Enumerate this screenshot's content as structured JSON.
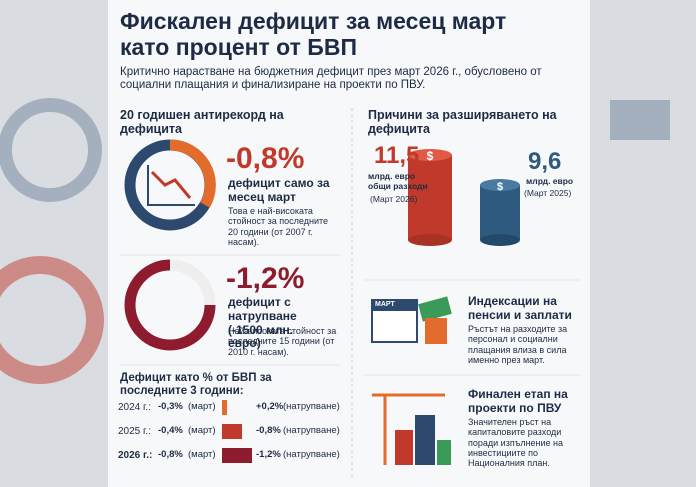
{
  "title": "Фискален дефицит за месец март като процент от БВП",
  "subtitle": "Критично нарастване на бюджетния дефицит през март 2026 г., обусловено от социални плащания и финализиране на проекти по ПВУ.",
  "left": {
    "heading": "20 годишен антирекорд на дефицита",
    "stats": [
      {
        "value": "-0,8%",
        "label": "дефицит само за месец март",
        "note": "Това е най-високата стойност за последните 20 години (от 2007 г. насам)."
      },
      {
        "value": "-1,2%",
        "label": "дефицит с натрупване (-1500 млн. евро)",
        "note": "Най-високата стойност за последните 15 години (от 2010 г. насам)."
      }
    ]
  },
  "chart": {
    "heading": "Дефицит като % от БВП за последните 3 години:",
    "rows": [
      {
        "year": "2024 г.:",
        "march_value": -0.3,
        "march_label": "-0,3%",
        "march_note": "(март)",
        "accum_value": 0.2,
        "accum_label": "+0,2%",
        "accum_note": "(натрупване)"
      },
      {
        "year": "2025 г.:",
        "march_value": -0.4,
        "march_label": "-0,4%",
        "march_note": "(март)",
        "accum_value": -0.8,
        "accum_label": "-0,8%",
        "accum_note": "(натрупване)"
      },
      {
        "year": "2026 г.:",
        "march_value": -0.8,
        "march_label": "-0,8%",
        "march_note": "(март)",
        "accum_value": -1.2,
        "accum_label": "-1,2%",
        "accum_note": "(натрупване)"
      }
    ]
  },
  "right": {
    "heading": "Причини за разширяването на дефицита",
    "coins": [
      {
        "amount": "11,5",
        "unit": "млрд. евро общи разходи",
        "period": "(Март 2026)"
      },
      {
        "amount": "9,6",
        "unit": "млрд. евро",
        "period": "(Март 2025)"
      }
    ],
    "reasons": [
      {
        "icon_label": "МАРТ",
        "title": "Индексации на пенсии и заплати",
        "text": "Ръстът на разходите за персонал и социални плащания влиза в сила именно през март."
      },
      {
        "title": "Финален етап на проекти по ПВУ",
        "text": "Значителен ръст на капиталовите разходи поради изпълнение на инвестициите по Националния план."
      }
    ]
  }
}
